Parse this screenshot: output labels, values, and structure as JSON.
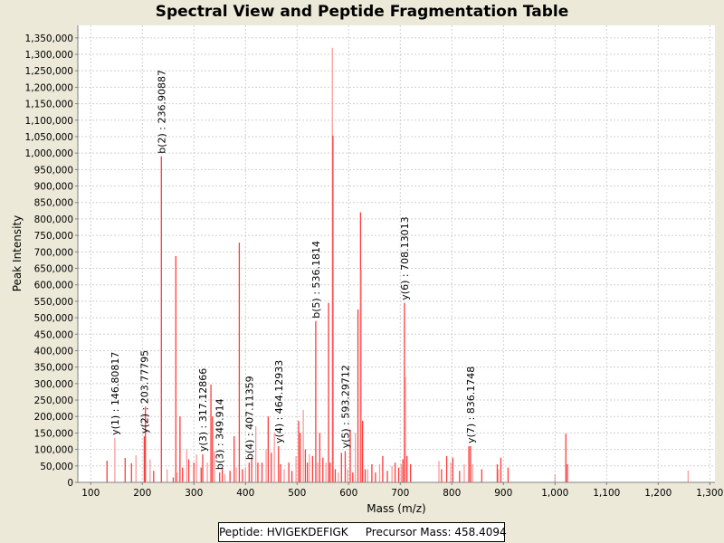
{
  "title": "Spectral View and Peptide Fragmentation Table",
  "legend": {
    "peptide_label": "Peptide: HVIGEKDEFIGK",
    "precursor_label": "Precursor Mass: 458.4094"
  },
  "colors": {
    "peak": "#ff3b3b",
    "peak_light": "#ff9a9a",
    "grid": "#d0d0d0",
    "background": "#ece9d8"
  },
  "chart_data": {
    "type": "bar",
    "title": "Spectral View and Peptide Fragmentation Table",
    "xlabel": "Mass (m/z)",
    "ylabel": "Peak Intensity",
    "xlim": [
      75,
      1310
    ],
    "ylim": [
      0,
      1388000
    ],
    "xticks": [
      100,
      200,
      300,
      400,
      500,
      600,
      700,
      800,
      900,
      1000,
      1100,
      1200,
      1300
    ],
    "xtick_labels": [
      "100",
      "200",
      "300",
      "400",
      "500",
      "600",
      "700",
      "800",
      "900",
      "1,000",
      "1,100",
      "1,200",
      "1,300"
    ],
    "yticks": [
      0,
      50000,
      100000,
      150000,
      200000,
      250000,
      300000,
      350000,
      400000,
      450000,
      500000,
      550000,
      600000,
      650000,
      700000,
      750000,
      800000,
      850000,
      900000,
      950000,
      1000000,
      1050000,
      1100000,
      1150000,
      1200000,
      1250000,
      1300000,
      1350000
    ],
    "ytick_labels": [
      "0",
      "50,000",
      "100,000",
      "150,000",
      "200,000",
      "250,000",
      "300,000",
      "350,000",
      "400,000",
      "450,000",
      "500,000",
      "550,000",
      "600,000",
      "650,000",
      "700,000",
      "750,000",
      "800,000",
      "850,000",
      "900,000",
      "950,000",
      "1,000,000",
      "1,050,000",
      "1,100,000",
      "1,150,000",
      "1,200,000",
      "1,250,000",
      "1,300,000",
      "1,350,000"
    ],
    "grid": true,
    "peaks": [
      [
        131.6,
        66000
      ],
      [
        146.8,
        135000
      ],
      [
        166.7,
        74000
      ],
      [
        179,
        58000
      ],
      [
        187.7,
        82000
      ],
      [
        203.8,
        140000
      ],
      [
        206,
        230000
      ],
      [
        215,
        70000
      ],
      [
        222,
        35000
      ],
      [
        236.9,
        990000
      ],
      [
        248,
        40000
      ],
      [
        260,
        15000
      ],
      [
        265,
        687000
      ],
      [
        268,
        30000
      ],
      [
        273,
        200000
      ],
      [
        278,
        45000
      ],
      [
        286,
        100000
      ],
      [
        290,
        70000
      ],
      [
        300,
        60000
      ],
      [
        305,
        85000
      ],
      [
        314,
        45000
      ],
      [
        317.1,
        85000
      ],
      [
        326,
        60000
      ],
      [
        333,
        297000
      ],
      [
        336,
        200000
      ],
      [
        340,
        95000
      ],
      [
        349.9,
        30000
      ],
      [
        355,
        40000
      ],
      [
        360,
        25000
      ],
      [
        370,
        35000
      ],
      [
        378,
        140000
      ],
      [
        382,
        45000
      ],
      [
        388,
        728000
      ],
      [
        394,
        40000
      ],
      [
        400,
        45000
      ],
      [
        407.1,
        60000
      ],
      [
        412,
        75000
      ],
      [
        420,
        170000
      ],
      [
        424,
        60000
      ],
      [
        432,
        60000
      ],
      [
        440,
        100000
      ],
      [
        444,
        200000
      ],
      [
        450,
        90000
      ],
      [
        456,
        150000
      ],
      [
        464.1,
        110000
      ],
      [
        468,
        55000
      ],
      [
        475,
        40000
      ],
      [
        484,
        60000
      ],
      [
        490,
        35000
      ],
      [
        498,
        80000
      ],
      [
        503,
        187000
      ],
      [
        506,
        150000
      ],
      [
        512,
        220000
      ],
      [
        516,
        100000
      ],
      [
        520,
        60000
      ],
      [
        524,
        85000
      ],
      [
        530,
        80000
      ],
      [
        536.2,
        490000
      ],
      [
        540,
        60000
      ],
      [
        544,
        150000
      ],
      [
        550,
        75000
      ],
      [
        556,
        60000
      ],
      [
        561,
        545000
      ],
      [
        564,
        60000
      ],
      [
        568.4,
        1320000
      ],
      [
        569.5,
        1053000
      ],
      [
        574,
        40000
      ],
      [
        580,
        30000
      ],
      [
        586,
        90000
      ],
      [
        593.3,
        95000
      ],
      [
        598,
        40000
      ],
      [
        603,
        160000
      ],
      [
        608,
        30000
      ],
      [
        613,
        150000
      ],
      [
        618,
        525000
      ],
      [
        623,
        820000
      ],
      [
        624.5,
        645000
      ],
      [
        627,
        187000
      ],
      [
        632,
        40000
      ],
      [
        637,
        40000
      ],
      [
        645,
        55000
      ],
      [
        652,
        30000
      ],
      [
        660,
        55000
      ],
      [
        666,
        80000
      ],
      [
        675,
        35000
      ],
      [
        684,
        50000
      ],
      [
        690,
        60000
      ],
      [
        697,
        45000
      ],
      [
        702,
        55000
      ],
      [
        705,
        70000
      ],
      [
        708.1,
        545000
      ],
      [
        710,
        320000
      ],
      [
        713,
        80000
      ],
      [
        720,
        55000
      ],
      [
        775,
        65000
      ],
      [
        780,
        40000
      ],
      [
        790,
        80000
      ],
      [
        798,
        60000
      ],
      [
        802,
        75000
      ],
      [
        815,
        35000
      ],
      [
        824,
        55000
      ],
      [
        833,
        110000
      ],
      [
        836.2,
        110000
      ],
      [
        840,
        55000
      ],
      [
        858,
        40000
      ],
      [
        888,
        55000
      ],
      [
        890,
        40000
      ],
      [
        895,
        75000
      ],
      [
        909,
        45000
      ],
      [
        1000,
        25000
      ],
      [
        1021,
        148000
      ],
      [
        1024,
        55000
      ],
      [
        1258,
        36000
      ]
    ],
    "annotations": [
      {
        "label": "y(1) : 146.80817",
        "mz": 146.8,
        "intensity": 135000
      },
      {
        "label": "y(2) : 203.77795",
        "mz": 203.8,
        "intensity": 140000
      },
      {
        "label": "b(2) : 236.90887",
        "mz": 236.9,
        "intensity": 990000
      },
      {
        "label": "y(3) : 317.12866",
        "mz": 317.1,
        "intensity": 85000
      },
      {
        "label": "b(3) : 349.914",
        "mz": 349.9,
        "intensity": 30000
      },
      {
        "label": "b(4) : 407.11359",
        "mz": 407.1,
        "intensity": 60000
      },
      {
        "label": "y(4) : 464.12933",
        "mz": 464.1,
        "intensity": 110000
      },
      {
        "label": "b(5) : 536.1814",
        "mz": 536.2,
        "intensity": 490000
      },
      {
        "label": "y(5) : 593.29712",
        "mz": 593.3,
        "intensity": 95000
      },
      {
        "label": "y(6) : 708.13013",
        "mz": 708.1,
        "intensity": 545000
      },
      {
        "label": "y(7) : 836.1748",
        "mz": 836.2,
        "intensity": 110000
      }
    ]
  }
}
